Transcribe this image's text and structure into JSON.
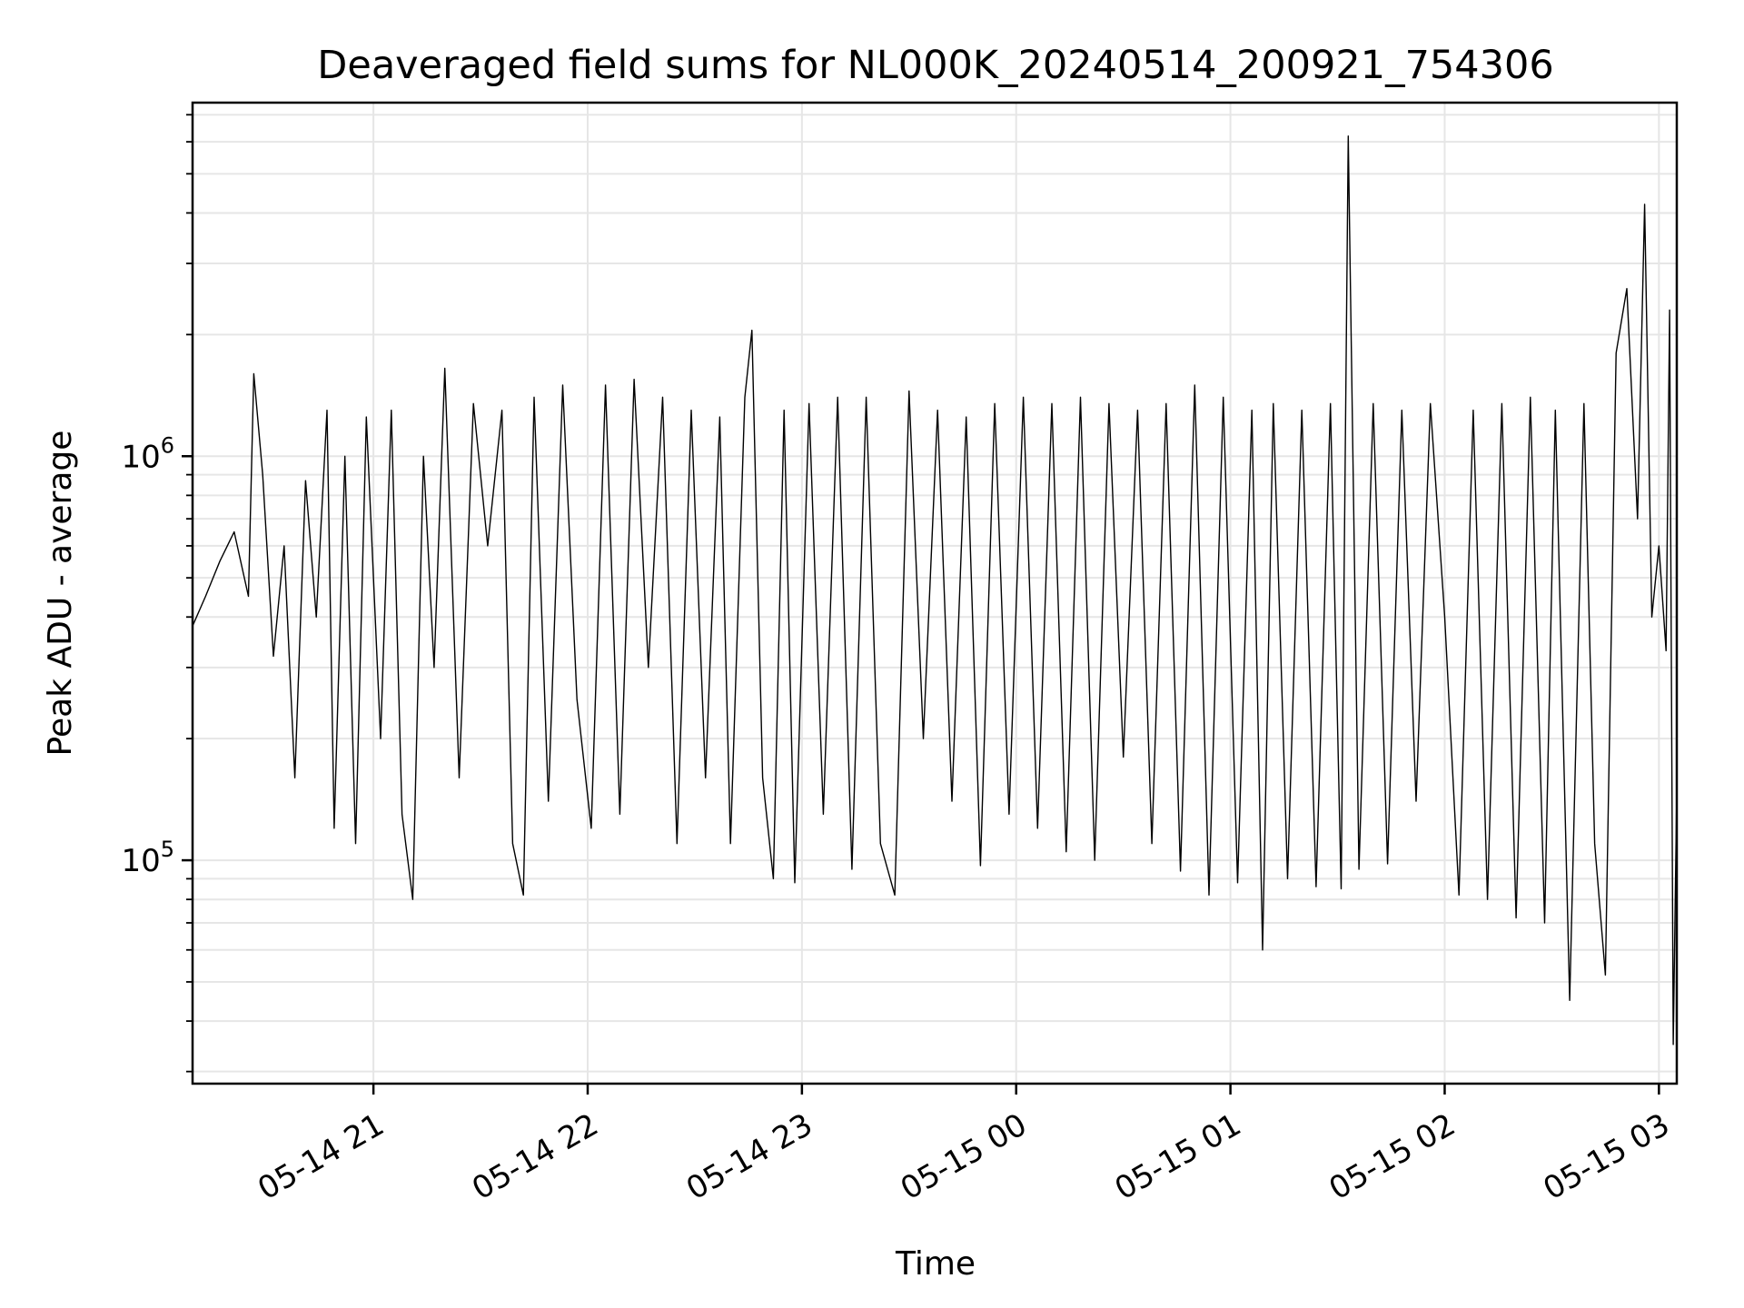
{
  "chart_data": {
    "type": "line",
    "title": "Deaveraged field sums for NL000K_20240514_200921_754306",
    "xlabel": "Time",
    "ylabel": "Peak ADU - average",
    "yscale": "log",
    "ylim": [
      28000,
      7500000
    ],
    "xlim": [
      "2024-05-14 20:09:21",
      "2024-05-15 03:05:00"
    ],
    "grid": true,
    "x_ticks": [
      {
        "value": "2024-05-14 21:00",
        "label": "05-14 21"
      },
      {
        "value": "2024-05-14 22:00",
        "label": "05-14 22"
      },
      {
        "value": "2024-05-14 23:00",
        "label": "05-14 23"
      },
      {
        "value": "2024-05-15 00:00",
        "label": "05-15 00"
      },
      {
        "value": "2024-05-15 01:00",
        "label": "05-15 01"
      },
      {
        "value": "2024-05-15 02:00",
        "label": "05-15 02"
      },
      {
        "value": "2024-05-15 03:00",
        "label": "05-15 03"
      }
    ],
    "y_ticks": [
      {
        "value": 100000,
        "base": "10",
        "exp": "5"
      },
      {
        "value": 1000000,
        "base": "10",
        "exp": "6"
      }
    ],
    "series": [
      {
        "color": "#000000",
        "points": [
          [
            "2024-05-14 20:09:21",
            380000
          ],
          [
            "2024-05-14 20:13:00",
            450000
          ],
          [
            "2024-05-14 20:17:00",
            550000
          ],
          [
            "2024-05-14 20:21:00",
            650000
          ],
          [
            "2024-05-14 20:25:00",
            450000
          ],
          [
            "2024-05-14 20:26:30",
            1600000
          ],
          [
            "2024-05-14 20:29:00",
            900000
          ],
          [
            "2024-05-14 20:32:00",
            320000
          ],
          [
            "2024-05-14 20:35:00",
            600000
          ],
          [
            "2024-05-14 20:38:00",
            160000
          ],
          [
            "2024-05-14 20:41:00",
            870000
          ],
          [
            "2024-05-14 20:44:00",
            400000
          ],
          [
            "2024-05-14 20:47:00",
            1300000
          ],
          [
            "2024-05-14 20:49:00",
            120000
          ],
          [
            "2024-05-14 20:52:00",
            1000000
          ],
          [
            "2024-05-14 20:55:00",
            110000
          ],
          [
            "2024-05-14 20:58:00",
            1250000
          ],
          [
            "2024-05-14 21:02:00",
            200000
          ],
          [
            "2024-05-14 21:05:00",
            1300000
          ],
          [
            "2024-05-14 21:08:00",
            130000
          ],
          [
            "2024-05-14 21:11:00",
            80000
          ],
          [
            "2024-05-14 21:14:00",
            1000000
          ],
          [
            "2024-05-14 21:17:00",
            300000
          ],
          [
            "2024-05-14 21:20:00",
            1650000
          ],
          [
            "2024-05-14 21:24:00",
            160000
          ],
          [
            "2024-05-14 21:28:00",
            1350000
          ],
          [
            "2024-05-14 21:32:00",
            600000
          ],
          [
            "2024-05-14 21:36:00",
            1300000
          ],
          [
            "2024-05-14 21:39:00",
            110000
          ],
          [
            "2024-05-14 21:42:00",
            82000
          ],
          [
            "2024-05-14 21:45:00",
            1400000
          ],
          [
            "2024-05-14 21:49:00",
            140000
          ],
          [
            "2024-05-14 21:53:00",
            1500000
          ],
          [
            "2024-05-14 21:57:00",
            250000
          ],
          [
            "2024-05-14 22:01:00",
            120000
          ],
          [
            "2024-05-14 22:05:00",
            1500000
          ],
          [
            "2024-05-14 22:09:00",
            130000
          ],
          [
            "2024-05-14 22:13:00",
            1550000
          ],
          [
            "2024-05-14 22:17:00",
            300000
          ],
          [
            "2024-05-14 22:21:00",
            1400000
          ],
          [
            "2024-05-14 22:25:00",
            110000
          ],
          [
            "2024-05-14 22:29:00",
            1300000
          ],
          [
            "2024-05-14 22:33:00",
            160000
          ],
          [
            "2024-05-14 22:37:00",
            1250000
          ],
          [
            "2024-05-14 22:40:00",
            110000
          ],
          [
            "2024-05-14 22:44:00",
            1400000
          ],
          [
            "2024-05-14 22:46:00",
            2050000
          ],
          [
            "2024-05-14 22:49:00",
            160000
          ],
          [
            "2024-05-14 22:52:00",
            90000
          ],
          [
            "2024-05-14 22:55:00",
            1300000
          ],
          [
            "2024-05-14 22:58:00",
            88000
          ],
          [
            "2024-05-14 23:02:00",
            1350000
          ],
          [
            "2024-05-14 23:06:00",
            130000
          ],
          [
            "2024-05-14 23:10:00",
            1400000
          ],
          [
            "2024-05-14 23:14:00",
            95000
          ],
          [
            "2024-05-14 23:18:00",
            1400000
          ],
          [
            "2024-05-14 23:22:00",
            110000
          ],
          [
            "2024-05-14 23:26:00",
            82000
          ],
          [
            "2024-05-14 23:30:00",
            1450000
          ],
          [
            "2024-05-14 23:34:00",
            200000
          ],
          [
            "2024-05-14 23:38:00",
            1300000
          ],
          [
            "2024-05-14 23:42:00",
            140000
          ],
          [
            "2024-05-14 23:46:00",
            1250000
          ],
          [
            "2024-05-14 23:50:00",
            97000
          ],
          [
            "2024-05-14 23:54:00",
            1350000
          ],
          [
            "2024-05-14 23:58:00",
            130000
          ],
          [
            "2024-05-15 00:02:00",
            1400000
          ],
          [
            "2024-05-15 00:06:00",
            120000
          ],
          [
            "2024-05-15 00:10:00",
            1350000
          ],
          [
            "2024-05-15 00:14:00",
            105000
          ],
          [
            "2024-05-15 00:18:00",
            1400000
          ],
          [
            "2024-05-15 00:22:00",
            100000
          ],
          [
            "2024-05-15 00:26:00",
            1350000
          ],
          [
            "2024-05-15 00:30:00",
            180000
          ],
          [
            "2024-05-15 00:34:00",
            1300000
          ],
          [
            "2024-05-15 00:38:00",
            110000
          ],
          [
            "2024-05-15 00:42:00",
            1350000
          ],
          [
            "2024-05-15 00:46:00",
            94000
          ],
          [
            "2024-05-15 00:50:00",
            1500000
          ],
          [
            "2024-05-15 00:54:00",
            82000
          ],
          [
            "2024-05-15 00:58:00",
            1400000
          ],
          [
            "2024-05-15 01:02:00",
            88000
          ],
          [
            "2024-05-15 01:06:00",
            1300000
          ],
          [
            "2024-05-15 01:09:00",
            60000
          ],
          [
            "2024-05-15 01:12:00",
            1350000
          ],
          [
            "2024-05-15 01:16:00",
            90000
          ],
          [
            "2024-05-15 01:20:00",
            1300000
          ],
          [
            "2024-05-15 01:24:00",
            86000
          ],
          [
            "2024-05-15 01:28:00",
            1350000
          ],
          [
            "2024-05-15 01:31:00",
            85000
          ],
          [
            "2024-05-15 01:33:00",
            6200000
          ],
          [
            "2024-05-15 01:36:00",
            95000
          ],
          [
            "2024-05-15 01:40:00",
            1350000
          ],
          [
            "2024-05-15 01:44:00",
            98000
          ],
          [
            "2024-05-15 01:48:00",
            1300000
          ],
          [
            "2024-05-15 01:52:00",
            140000
          ],
          [
            "2024-05-15 01:56:00",
            1350000
          ],
          [
            "2024-05-15 02:00:00",
            400000
          ],
          [
            "2024-05-15 02:04:00",
            82000
          ],
          [
            "2024-05-15 02:08:00",
            1300000
          ],
          [
            "2024-05-15 02:12:00",
            80000
          ],
          [
            "2024-05-15 02:16:00",
            1350000
          ],
          [
            "2024-05-15 02:20:00",
            72000
          ],
          [
            "2024-05-15 02:24:00",
            1400000
          ],
          [
            "2024-05-15 02:28:00",
            70000
          ],
          [
            "2024-05-15 02:31:00",
            1300000
          ],
          [
            "2024-05-15 02:35:00",
            45000
          ],
          [
            "2024-05-15 02:39:00",
            1350000
          ],
          [
            "2024-05-15 02:42:00",
            110000
          ],
          [
            "2024-05-15 02:45:00",
            52000
          ],
          [
            "2024-05-15 02:48:00",
            1800000
          ],
          [
            "2024-05-15 02:51:00",
            2600000
          ],
          [
            "2024-05-15 02:54:00",
            700000
          ],
          [
            "2024-05-15 02:56:00",
            4200000
          ],
          [
            "2024-05-15 02:58:00",
            400000
          ],
          [
            "2024-05-15 03:00:00",
            600000
          ],
          [
            "2024-05-15 03:02:00",
            330000
          ],
          [
            "2024-05-15 03:03:00",
            2300000
          ],
          [
            "2024-05-15 03:04:00",
            35000
          ],
          [
            "2024-05-15 03:05:00",
            150000
          ]
        ]
      }
    ]
  }
}
